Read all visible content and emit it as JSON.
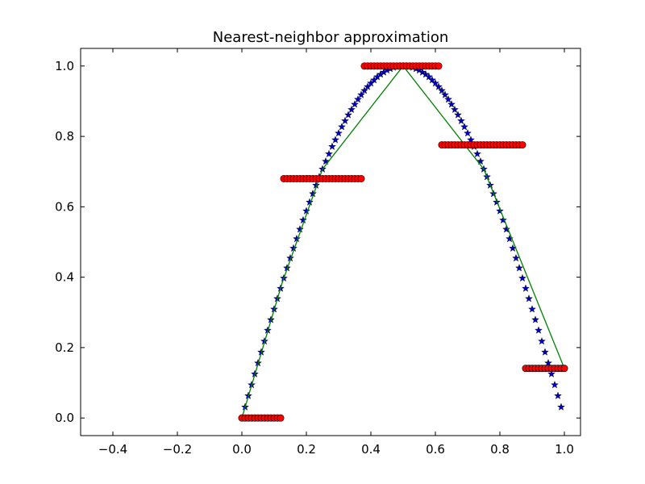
{
  "chart_data": {
    "type": "line",
    "title": "Nearest-neighbor approximation",
    "xlabel": "",
    "ylabel": "",
    "xlim": [
      -0.5,
      1.05
    ],
    "ylim": [
      -0.05,
      1.05
    ],
    "xticks": [
      -0.4,
      -0.2,
      0.0,
      0.2,
      0.4,
      0.6,
      0.8,
      1.0
    ],
    "xtick_labels": [
      "−0.4",
      "−0.2",
      "0.0",
      "0.2",
      "0.4",
      "0.6",
      "0.8",
      "1.0"
    ],
    "yticks": [
      0.0,
      0.2,
      0.4,
      0.6,
      0.8,
      1.0
    ],
    "ytick_labels": [
      "0.0",
      "0.2",
      "0.4",
      "0.6",
      "0.8",
      "1.0"
    ],
    "grid": false,
    "series": [
      {
        "style": "blue-star-markers",
        "color": "#0000bf",
        "x": [
          0.01,
          0.02,
          0.03,
          0.04,
          0.05,
          0.06,
          0.07,
          0.08,
          0.09,
          0.1,
          0.11,
          0.12,
          0.13,
          0.14,
          0.15,
          0.16,
          0.17,
          0.18,
          0.19,
          0.2,
          0.21,
          0.22,
          0.23,
          0.24,
          0.25,
          0.26,
          0.27,
          0.28,
          0.29,
          0.3,
          0.31,
          0.32,
          0.33,
          0.34,
          0.35,
          0.36,
          0.37,
          0.38,
          0.39,
          0.4,
          0.41,
          0.42,
          0.43,
          0.44,
          0.45,
          0.46,
          0.47,
          0.48,
          0.49,
          0.5,
          0.51,
          0.52,
          0.53,
          0.54,
          0.55,
          0.56,
          0.57,
          0.58,
          0.59,
          0.6,
          0.61,
          0.62,
          0.63,
          0.64,
          0.65,
          0.66,
          0.67,
          0.68,
          0.69,
          0.7,
          0.71,
          0.72,
          0.73,
          0.74,
          0.75,
          0.76,
          0.77,
          0.78,
          0.79,
          0.8,
          0.81,
          0.82,
          0.83,
          0.84,
          0.85,
          0.86,
          0.87,
          0.88,
          0.89,
          0.9,
          0.91,
          0.92,
          0.93,
          0.94,
          0.95,
          0.96,
          0.97,
          0.98,
          0.99
        ],
        "y": [
          0.031,
          0.063,
          0.094,
          0.125,
          0.156,
          0.187,
          0.218,
          0.249,
          0.279,
          0.309,
          0.339,
          0.368,
          0.397,
          0.426,
          0.454,
          0.482,
          0.509,
          0.536,
          0.562,
          0.588,
          0.613,
          0.637,
          0.661,
          0.685,
          0.707,
          0.729,
          0.75,
          0.771,
          0.79,
          0.809,
          0.827,
          0.844,
          0.861,
          0.876,
          0.891,
          0.905,
          0.918,
          0.93,
          0.941,
          0.951,
          0.96,
          0.969,
          0.976,
          0.982,
          0.988,
          0.992,
          0.996,
          0.998,
          1.0,
          1.0,
          1.0,
          0.998,
          0.996,
          0.992,
          0.988,
          0.982,
          0.976,
          0.969,
          0.96,
          0.951,
          0.941,
          0.93,
          0.918,
          0.905,
          0.891,
          0.876,
          0.861,
          0.844,
          0.827,
          0.809,
          0.79,
          0.771,
          0.75,
          0.729,
          0.707,
          0.685,
          0.661,
          0.637,
          0.613,
          0.588,
          0.562,
          0.536,
          0.509,
          0.482,
          0.454,
          0.426,
          0.397,
          0.368,
          0.339,
          0.309,
          0.279,
          0.249,
          0.218,
          0.187,
          0.156,
          0.125,
          0.094,
          0.063,
          0.031
        ]
      },
      {
        "style": "green-line",
        "color": "#008000",
        "x": [
          0.0,
          0.125,
          0.25,
          0.5,
          0.75,
          1.0
        ],
        "y": [
          0.0,
          0.384,
          0.707,
          1.0,
          0.707,
          0.141
        ]
      },
      {
        "style": "red-circle-markers",
        "color": "#ff0000",
        "x": [
          0.0,
          0.01,
          0.02,
          0.03,
          0.04,
          0.05,
          0.06,
          0.07,
          0.08,
          0.09,
          0.1,
          0.11,
          0.12,
          0.13,
          0.14,
          0.15,
          0.16,
          0.17,
          0.18,
          0.19,
          0.2,
          0.21,
          0.22,
          0.23,
          0.24,
          0.25,
          0.26,
          0.27,
          0.28,
          0.29,
          0.3,
          0.31,
          0.32,
          0.33,
          0.34,
          0.35,
          0.36,
          0.37,
          0.38,
          0.39,
          0.4,
          0.41,
          0.42,
          0.43,
          0.44,
          0.45,
          0.46,
          0.47,
          0.48,
          0.49,
          0.5,
          0.51,
          0.52,
          0.53,
          0.54,
          0.55,
          0.56,
          0.57,
          0.58,
          0.59,
          0.6,
          0.61,
          0.62,
          0.63,
          0.64,
          0.65,
          0.66,
          0.67,
          0.68,
          0.69,
          0.7,
          0.71,
          0.72,
          0.73,
          0.74,
          0.75,
          0.76,
          0.77,
          0.78,
          0.79,
          0.8,
          0.81,
          0.82,
          0.83,
          0.84,
          0.85,
          0.86,
          0.87,
          0.88,
          0.89,
          0.9,
          0.91,
          0.92,
          0.93,
          0.94,
          0.95,
          0.96,
          0.97,
          0.98,
          0.99,
          1.0
        ],
        "y": [
          0.0,
          0.0,
          0.0,
          0.0,
          0.0,
          0.0,
          0.0,
          0.0,
          0.0,
          0.0,
          0.0,
          0.0,
          0.0,
          0.68,
          0.68,
          0.68,
          0.68,
          0.68,
          0.68,
          0.68,
          0.68,
          0.68,
          0.68,
          0.68,
          0.68,
          0.68,
          0.68,
          0.68,
          0.68,
          0.68,
          0.68,
          0.68,
          0.68,
          0.68,
          0.68,
          0.68,
          0.68,
          0.68,
          1.0,
          1.0,
          1.0,
          1.0,
          1.0,
          1.0,
          1.0,
          1.0,
          1.0,
          1.0,
          1.0,
          1.0,
          1.0,
          1.0,
          1.0,
          1.0,
          1.0,
          1.0,
          1.0,
          1.0,
          1.0,
          1.0,
          1.0,
          1.0,
          0.776,
          0.776,
          0.776,
          0.776,
          0.776,
          0.776,
          0.776,
          0.776,
          0.776,
          0.776,
          0.776,
          0.776,
          0.776,
          0.776,
          0.776,
          0.776,
          0.776,
          0.776,
          0.776,
          0.776,
          0.776,
          0.776,
          0.776,
          0.776,
          0.776,
          0.776,
          0.141,
          0.141,
          0.141,
          0.141,
          0.141,
          0.141,
          0.141,
          0.141,
          0.141,
          0.141,
          0.141,
          0.141,
          0.141
        ]
      }
    ]
  }
}
